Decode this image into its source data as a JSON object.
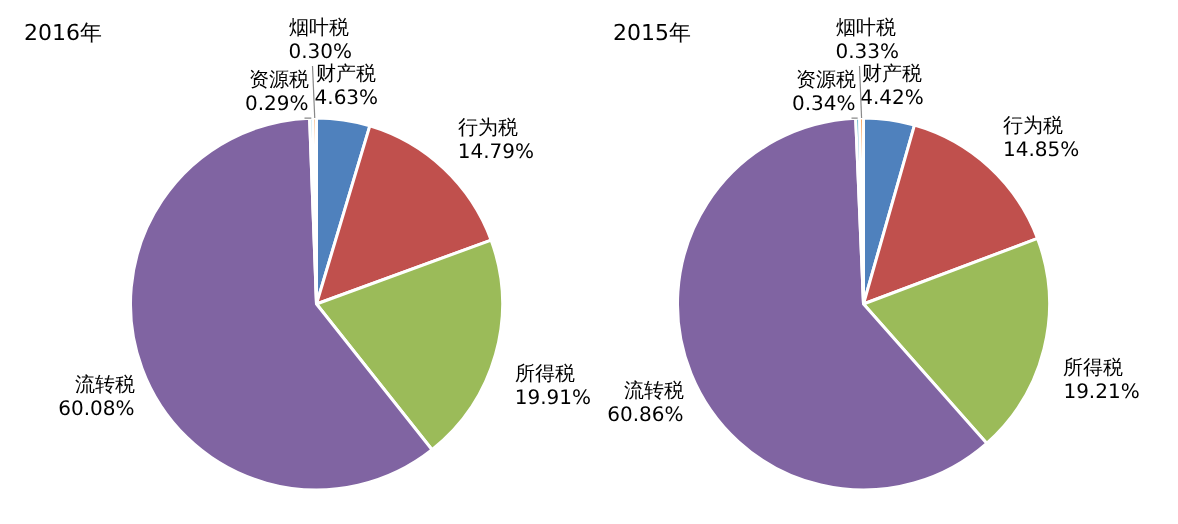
{
  "chart_data": [
    {
      "type": "pie",
      "title": "2016年",
      "categories": [
        "财产税",
        "行为税",
        "所得税",
        "流转税",
        "资源税",
        "烟叶税"
      ],
      "values": [
        4.63,
        14.79,
        19.91,
        60.08,
        0.29,
        0.3
      ],
      "value_labels": [
        "4.63%",
        "14.79%",
        "19.91%",
        "60.08%",
        "0.29%",
        "0.30%"
      ],
      "colors": [
        "#4f81bd",
        "#c0504d",
        "#9bbb59",
        "#8064a2",
        "#4bacc6",
        "#f79646"
      ]
    },
    {
      "type": "pie",
      "title": "2015年",
      "categories": [
        "财产税",
        "行为税",
        "所得税",
        "流转税",
        "资源税",
        "烟叶税"
      ],
      "values": [
        4.42,
        14.85,
        19.21,
        60.86,
        0.34,
        0.33
      ],
      "value_labels": [
        "4.42%",
        "14.85%",
        "19.21%",
        "60.86%",
        "0.34%",
        "0.33%"
      ],
      "colors": [
        "#4f81bd",
        "#c0504d",
        "#9bbb59",
        "#8064a2",
        "#4bacc6",
        "#f79646"
      ]
    }
  ]
}
